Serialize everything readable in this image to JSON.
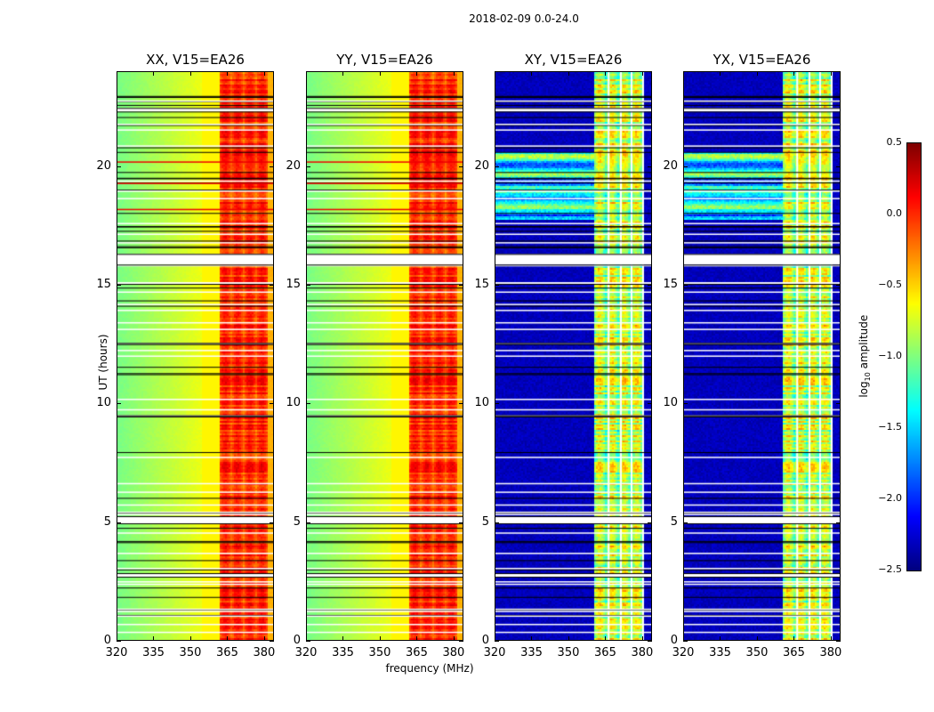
{
  "chart_data": {
    "type": "heatmap",
    "title": "2018-02-09 0.0-24.0",
    "xlabel": "frequency (MHz)",
    "ylabel": "UT (hours)",
    "xlim": [
      320,
      384
    ],
    "ylim": [
      0,
      24
    ],
    "xticks": [
      "320",
      "335",
      "350",
      "365",
      "380"
    ],
    "yticks": [
      "0",
      "5",
      "10",
      "15",
      "20"
    ],
    "panels": [
      {
        "title": "XX, V15=EA26",
        "background_log10": -0.8,
        "band_mhz": [
          362,
          382
        ],
        "band_log10": [
          -0.4,
          0.3
        ]
      },
      {
        "title": "YY, V15=EA26",
        "background_log10": -0.8,
        "band_mhz": [
          362,
          382
        ],
        "band_log10": [
          -0.4,
          0.3
        ]
      },
      {
        "title": "XY, V15=EA26",
        "background_log10": -2.4,
        "band_mhz": [
          360.5,
          381
        ],
        "band_log10": [
          -1.6,
          -0.2
        ]
      },
      {
        "title": "YX, V15=EA26",
        "background_log10": -2.4,
        "band_mhz": [
          360.5,
          381
        ],
        "band_log10": [
          -1.6,
          -0.2
        ]
      }
    ],
    "flagged_hours": [
      [
        15.85,
        16.3
      ],
      [
        4.95,
        5.25
      ],
      [
        22.3,
        22.45
      ],
      [
        2.7,
        2.85
      ],
      [
        9.45,
        9.5
      ],
      [
        12.5,
        12.55
      ]
    ],
    "colorbar": {
      "label": "log10 amplitude",
      "label_main": "log",
      "label_sub": "10",
      "label_rest": " amplitude",
      "range": [
        -2.5,
        0.5
      ],
      "ticks": [
        "0.5",
        "0.0",
        "−0.5",
        "−1.0",
        "−1.5",
        "−2.0",
        "−2.5"
      ],
      "colormap": "jet"
    }
  }
}
